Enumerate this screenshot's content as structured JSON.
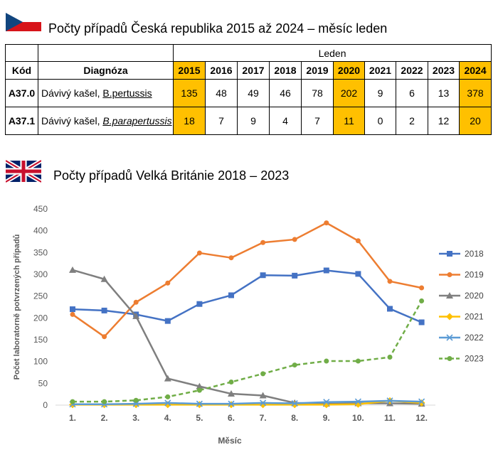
{
  "cz": {
    "title": "Počty případů Česká republika 2015 až 2024 – měsíc leden",
    "table": {
      "group_header": "Leden",
      "col_code": "Kód",
      "col_diag": "Diagnóza",
      "years": [
        "2015",
        "2016",
        "2017",
        "2018",
        "2019",
        "2020",
        "2021",
        "2022",
        "2023",
        "2024"
      ],
      "highlight_years": [
        "2015",
        "2020",
        "2024"
      ],
      "rows": [
        {
          "code": "A37.0",
          "diag_prefix": "Dávivý kašel, ",
          "diag_species": "B.pertussis",
          "values": [
            "135",
            "48",
            "49",
            "46",
            "78",
            "202",
            "9",
            "6",
            "13",
            "378"
          ]
        },
        {
          "code": "A37.1",
          "diag_prefix": "Dávivý kašel, ",
          "diag_species": "B.parapertussis",
          "values": [
            "18",
            "7",
            "9",
            "4",
            "7",
            "11",
            "0",
            "2",
            "12",
            "20"
          ]
        }
      ]
    }
  },
  "uk": {
    "title": "Počty případů Velká Británie 2018 – 2023"
  },
  "chart_data": {
    "type": "line",
    "title": "",
    "xlabel": "Měsíc",
    "ylabel": "Počet laboratorně potvrzených případů",
    "categories": [
      "1.",
      "2.",
      "3.",
      "4.",
      "5.",
      "6.",
      "7.",
      "8.",
      "9.",
      "10.",
      "11.",
      "12."
    ],
    "ylim": [
      0,
      450
    ],
    "yticks": [
      0,
      50,
      100,
      150,
      200,
      250,
      300,
      350,
      400,
      450
    ],
    "grid": false,
    "legend_position": "right",
    "series": [
      {
        "name": "2018",
        "color": "#4472C4",
        "marker": "square",
        "dash": false,
        "values": [
          220,
          217,
          208,
          193,
          232,
          252,
          298,
          297,
          309,
          301,
          221,
          190
        ]
      },
      {
        "name": "2019",
        "color": "#ED7D31",
        "marker": "circle",
        "dash": false,
        "values": [
          208,
          157,
          236,
          280,
          349,
          338,
          373,
          380,
          418,
          377,
          284,
          269
        ]
      },
      {
        "name": "2020",
        "color": "#7F7F7F",
        "marker": "triangle",
        "dash": false,
        "values": [
          310,
          289,
          204,
          61,
          43,
          26,
          22,
          5,
          3,
          4,
          4,
          3
        ]
      },
      {
        "name": "2021",
        "color": "#FFC000",
        "marker": "diamond",
        "dash": false,
        "values": [
          1,
          1,
          1,
          1,
          1,
          1,
          1,
          1,
          1,
          2,
          10,
          5
        ]
      },
      {
        "name": "2022",
        "color": "#5B9BD5",
        "marker": "x",
        "dash": false,
        "values": [
          2,
          2,
          3,
          5,
          3,
          3,
          5,
          4,
          7,
          8,
          10,
          8
        ]
      },
      {
        "name": "2023",
        "color": "#70AD47",
        "marker": "circle",
        "dash": true,
        "values": [
          8,
          8,
          11,
          19,
          34,
          53,
          72,
          92,
          101,
          101,
          110,
          239
        ]
      }
    ]
  }
}
